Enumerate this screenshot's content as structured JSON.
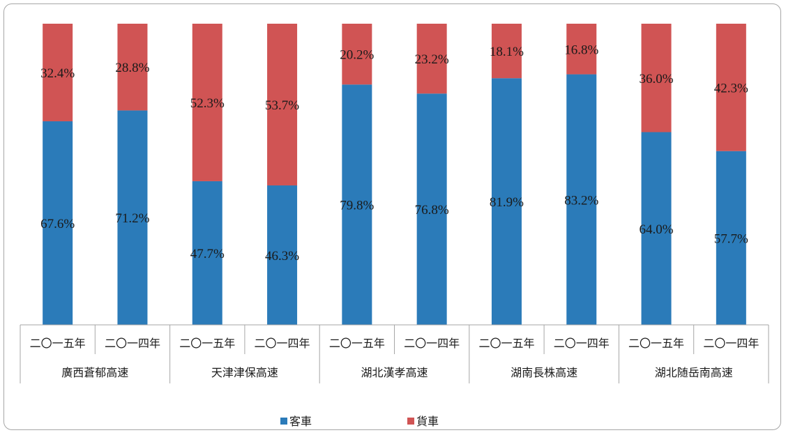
{
  "chart_data": {
    "type": "bar",
    "stacked": true,
    "groups": [
      {
        "name": "廣西蒼郁高速",
        "years": [
          "二〇一五年",
          "二〇一四年"
        ]
      },
      {
        "name": "天津津保高速",
        "years": [
          "二〇一五年",
          "二〇一四年"
        ]
      },
      {
        "name": "湖北漢孝高速",
        "years": [
          "二〇一五年",
          "二〇一四年"
        ]
      },
      {
        "name": "湖南長株高速",
        "years": [
          "二〇一五年",
          "二〇一四年"
        ]
      },
      {
        "name": "湖北随岳南高速",
        "years": [
          "二〇一五年",
          "二〇一四年"
        ]
      }
    ],
    "series": [
      {
        "name": "客車",
        "color": "#2b7bb9",
        "values": [
          67.6,
          71.2,
          47.7,
          46.3,
          79.8,
          76.8,
          81.9,
          83.2,
          64.0,
          57.7
        ],
        "labels": [
          "67.6%",
          "71.2%",
          "47.7%",
          "46.3%",
          "79.8%",
          "76.8%",
          "81.9%",
          "83.2%",
          "64.0%",
          "57.7%"
        ]
      },
      {
        "name": "貨車",
        "color": "#d05454",
        "values": [
          32.4,
          28.8,
          52.3,
          53.7,
          20.2,
          23.2,
          18.1,
          16.8,
          36.0,
          42.3
        ],
        "labels": [
          "32.4%",
          "28.8%",
          "52.3%",
          "53.7%",
          "20.2%",
          "23.2%",
          "18.1%",
          "16.8%",
          "36.0%",
          "42.3%"
        ]
      }
    ],
    "ylim": [
      0,
      100
    ],
    "legend": "bottom",
    "grid": false
  }
}
